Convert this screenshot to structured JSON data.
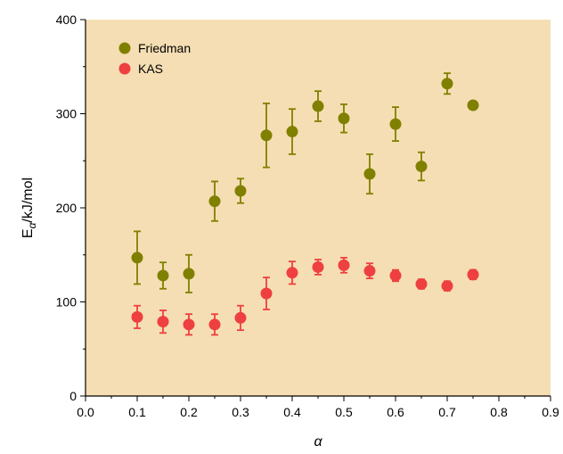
{
  "chart_data": {
    "type": "scatter",
    "xlabel_base": "α",
    "ylabel": {
      "base": "E",
      "sub": "α",
      "rest": "/kJ/mol"
    },
    "xlim": [
      0.0,
      0.9
    ],
    "ylim": [
      0,
      400
    ],
    "xticks": [
      "0.0",
      "0.1",
      "0.2",
      "0.3",
      "0.4",
      "0.5",
      "0.6",
      "0.7",
      "0.8",
      "0.9"
    ],
    "yticks": [
      "0",
      "100",
      "200",
      "300",
      "400"
    ],
    "grid": false,
    "legend_position": "top-left",
    "plot_background": "#F5DEB3",
    "series": [
      {
        "name": "Friedman",
        "color": "#808000",
        "x": [
          0.1,
          0.15,
          0.2,
          0.25,
          0.3,
          0.35,
          0.4,
          0.45,
          0.5,
          0.55,
          0.6,
          0.65,
          0.7,
          0.75
        ],
        "y": [
          147,
          128,
          130,
          207,
          218,
          277,
          281,
          308,
          295,
          236,
          289,
          244,
          332,
          309
        ],
        "err": [
          28,
          14,
          20,
          21,
          13,
          34,
          24,
          16,
          15,
          21,
          18,
          15,
          11,
          3
        ]
      },
      {
        "name": "KAS",
        "color": "#EE4040",
        "x": [
          0.1,
          0.15,
          0.2,
          0.25,
          0.3,
          0.35,
          0.4,
          0.45,
          0.5,
          0.55,
          0.6,
          0.65,
          0.7,
          0.75
        ],
        "y": [
          84,
          79,
          76,
          76,
          83,
          109,
          131,
          137,
          139,
          133,
          128,
          119,
          117,
          129
        ],
        "err": [
          12,
          12,
          11,
          11,
          13,
          17,
          12,
          8,
          8,
          8,
          6,
          5,
          5,
          5
        ]
      }
    ]
  }
}
